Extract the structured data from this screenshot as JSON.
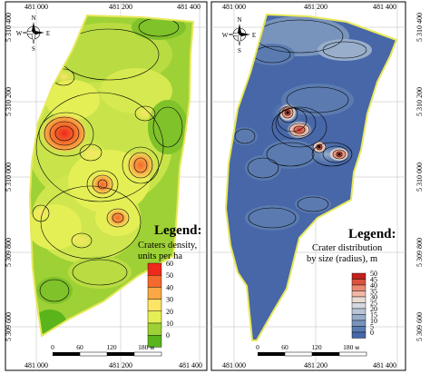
{
  "maps": [
    {
      "legend_title": "Legend:",
      "legend_subtitle_1": "Craters density,",
      "legend_subtitle_2": "units per ha",
      "legend_values": [
        "60",
        "50",
        "40",
        "30",
        "20",
        "10",
        "0"
      ],
      "legend_colors": [
        "#ee2a1c",
        "#f46a2c",
        "#f9a845",
        "#fbe466",
        "#e4ef55",
        "#9ed135",
        "#5ab41c"
      ],
      "top_coords": [
        "481 000",
        "481 200",
        "481 400"
      ],
      "bottom_coords": [
        "481 000",
        "481 200",
        "481 400"
      ],
      "left_coords": [
        "5 310 400",
        "5 310 200",
        "5 310 000",
        "5 309 800",
        "5 309 600"
      ],
      "scale_labels": [
        "0",
        "60",
        "120",
        "180 м"
      ],
      "compass": {
        "n": "N",
        "s": "S",
        "e": "E",
        "w": "W"
      }
    },
    {
      "legend_title": "Legend:",
      "legend_subtitle_1": "Crater distribution",
      "legend_subtitle_2": "by size (radius), m",
      "legend_values": [
        "50",
        "45",
        "40",
        "35",
        "30",
        "25",
        "20",
        "15",
        "10",
        "5",
        "0"
      ],
      "legend_colors": [
        "#c3201c",
        "#d9533f",
        "#e98a73",
        "#f1b8a6",
        "#e9dad3",
        "#d5d8df",
        "#b9c5d6",
        "#98aecb",
        "#7894bd",
        "#5b7bb0",
        "#4767a8"
      ],
      "top_coords": [
        "481 000",
        "481 200",
        "481 400"
      ],
      "bottom_coords": [
        "481 000",
        "481 200",
        "481 400"
      ],
      "right_coords": [
        "5 310 400",
        "5 310 200",
        "5 310 000",
        "5 309 800",
        "5 309 600"
      ],
      "scale_labels": [
        "0",
        "60",
        "120",
        "180 м"
      ],
      "compass": {
        "n": "N",
        "s": "S",
        "e": "E",
        "w": "W"
      }
    }
  ]
}
